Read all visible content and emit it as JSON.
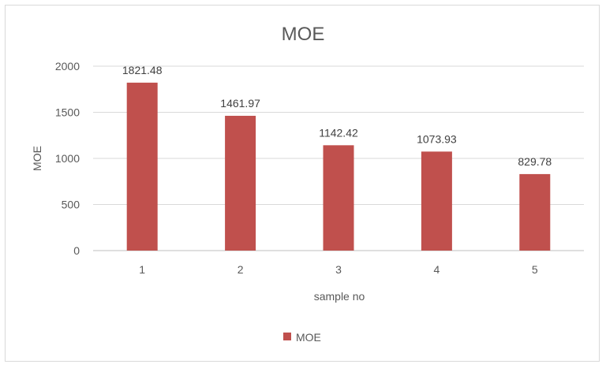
{
  "chart_data": {
    "type": "bar",
    "title": "MOE",
    "xlabel": "sample no",
    "ylabel": "MOE",
    "categories": [
      "1",
      "2",
      "3",
      "4",
      "5"
    ],
    "series": [
      {
        "name": "MOE",
        "values": [
          1821.48,
          1461.97,
          1142.42,
          1073.93,
          829.78
        ],
        "color": "#c0504d"
      }
    ],
    "data_labels": [
      "1821.48",
      "1461.97",
      "1142.42",
      "1073.93",
      "829.78"
    ],
    "ylim": [
      0,
      2000
    ],
    "yticks": [
      "0",
      "500",
      "1000",
      "1500",
      "2000"
    ],
    "grid": true,
    "legend_position": "bottom"
  }
}
